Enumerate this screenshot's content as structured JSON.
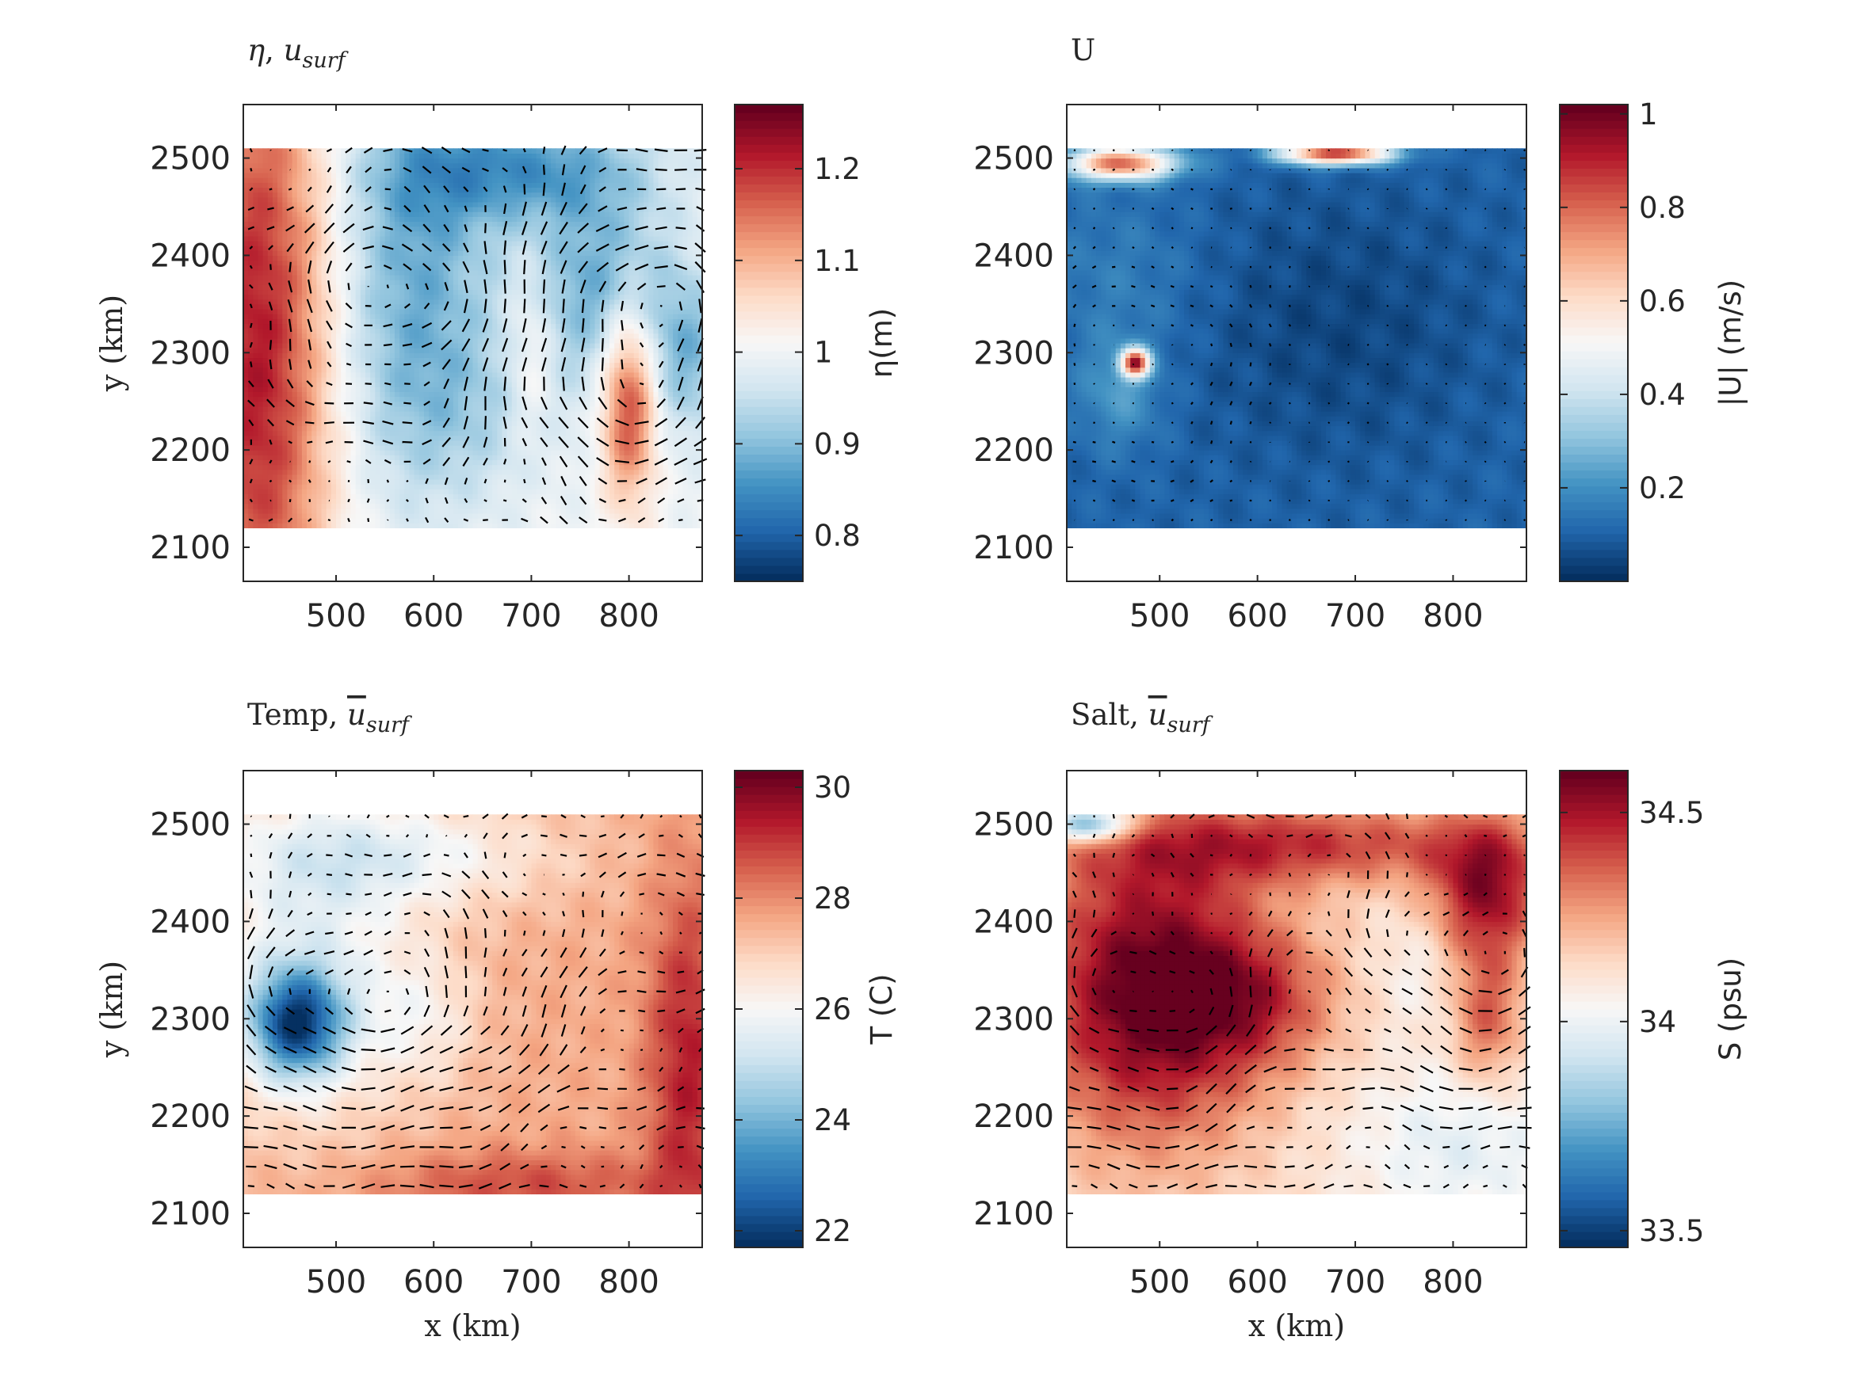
{
  "colors": {
    "colormap": [
      "#053061",
      "#2166ac",
      "#4393c3",
      "#92c5de",
      "#d1e5f0",
      "#f7f7f7",
      "#fddbc7",
      "#f4a582",
      "#d6604d",
      "#b2182b",
      "#67001f"
    ],
    "arrow": "#000000",
    "axis": "#262626"
  },
  "chart_data": [
    {
      "type": "heatmap",
      "panel": "eta",
      "title_parts": [
        "η",
        ", ",
        "u",
        "surf"
      ],
      "xlabel": "",
      "ylabel": "y (km)",
      "colorbar_label": "η(m)",
      "xlim": [
        405,
        875
      ],
      "ylim": [
        2065,
        2555
      ],
      "data_x_range": [
        405,
        875
      ],
      "data_y_range": [
        2120,
        2510
      ],
      "xticks": [
        500,
        600,
        700,
        800
      ],
      "yticks": [
        2100,
        2200,
        2300,
        2400,
        2500
      ],
      "clim": [
        0.75,
        1.27
      ],
      "cticks": [
        {
          "v": 0.8,
          "label": "0.8"
        },
        {
          "v": 0.9,
          "label": "0.9"
        },
        {
          "v": 1.0,
          "label": "1"
        },
        {
          "v": 1.1,
          "label": "1.1"
        },
        {
          "v": 1.2,
          "label": "1.2"
        }
      ],
      "field_base": 1.0,
      "field_features": [
        {
          "x": 420,
          "y": 2300,
          "sx": 55,
          "sy": 260,
          "amp": 0.22
        },
        {
          "x": 800,
          "y": 2250,
          "sx": 20,
          "sy": 70,
          "amp": 0.2
        },
        {
          "x": 700,
          "y": 2300,
          "sx": 18,
          "sy": 60,
          "amp": 0.06
        },
        {
          "x": 580,
          "y": 2380,
          "sx": 60,
          "sy": 150,
          "amp": -0.12
        },
        {
          "x": 690,
          "y": 2490,
          "sx": 90,
          "sy": 40,
          "amp": -0.13
        },
        {
          "x": 770,
          "y": 2370,
          "sx": 50,
          "sy": 70,
          "amp": -0.12
        },
        {
          "x": 860,
          "y": 2300,
          "sx": 30,
          "sy": 60,
          "amp": -0.1
        },
        {
          "x": 650,
          "y": 2240,
          "sx": 70,
          "sy": 60,
          "amp": -0.04
        }
      ],
      "vector_field": {
        "type": "eddies",
        "scale": 1.0,
        "eddies": [
          {
            "x": 800,
            "y": 2260,
            "s": 1
          },
          {
            "x": 560,
            "y": 2360,
            "s": -1
          },
          {
            "x": 830,
            "y": 2380,
            "s": 1
          }
        ]
      }
    },
    {
      "type": "heatmap",
      "panel": "speed",
      "title_parts": [
        "U"
      ],
      "xlabel": "",
      "ylabel": "",
      "colorbar_label": "|U| (m/s)",
      "xlim": [
        405,
        875
      ],
      "ylim": [
        2065,
        2555
      ],
      "data_x_range": [
        405,
        875
      ],
      "data_y_range": [
        2120,
        2510
      ],
      "xticks": [
        500,
        600,
        700,
        800
      ],
      "yticks": [
        2100,
        2200,
        2300,
        2400,
        2500
      ],
      "clim": [
        0.0,
        1.02
      ],
      "cticks": [
        {
          "v": 0.2,
          "label": "0.2"
        },
        {
          "v": 0.4,
          "label": "0.4"
        },
        {
          "v": 0.6,
          "label": "0.6"
        },
        {
          "v": 0.8,
          "label": "0.8"
        },
        {
          "v": 1.0,
          "label": "1"
        }
      ],
      "field_base": 0.1,
      "field_features": [
        {
          "x": 460,
          "y": 2495,
          "sx": 40,
          "sy": 12,
          "amp": 0.7
        },
        {
          "x": 680,
          "y": 2505,
          "sx": 40,
          "sy": 8,
          "amp": 0.8
        },
        {
          "x": 475,
          "y": 2290,
          "sx": 10,
          "sy": 10,
          "amp": 0.8
        },
        {
          "x": 460,
          "y": 2260,
          "sx": 30,
          "sy": 40,
          "amp": 0.12
        },
        {
          "x": 460,
          "y": 2380,
          "sx": 60,
          "sy": 60,
          "amp": 0.06
        },
        {
          "x": 680,
          "y": 2330,
          "sx": 110,
          "sy": 100,
          "amp": -0.06
        }
      ],
      "vector_field": {
        "type": "eddies",
        "scale": 0.3,
        "eddies": [
          {
            "x": 475,
            "y": 2290,
            "s": 1
          }
        ]
      }
    },
    {
      "type": "heatmap",
      "panel": "temp",
      "title_parts": [
        "Temp, ",
        "u",
        "surf"
      ],
      "title_overbar": true,
      "xlabel": "x (km)",
      "ylabel": "y (km)",
      "colorbar_label": "T (C)",
      "xlim": [
        405,
        875
      ],
      "ylim": [
        2065,
        2555
      ],
      "data_x_range": [
        405,
        875
      ],
      "data_y_range": [
        2120,
        2510
      ],
      "xticks": [
        500,
        600,
        700,
        800
      ],
      "yticks": [
        2100,
        2200,
        2300,
        2400,
        2500
      ],
      "clim": [
        21.7,
        30.3
      ],
      "cticks": [
        {
          "v": 22,
          "label": "22"
        },
        {
          "v": 24,
          "label": "24"
        },
        {
          "v": 26,
          "label": "26"
        },
        {
          "v": 28,
          "label": "28"
        },
        {
          "v": 30,
          "label": "30"
        }
      ],
      "field_base": 27.6,
      "field_features": [
        {
          "x": 460,
          "y": 2295,
          "sx": 35,
          "sy": 40,
          "amp": -4.5
        },
        {
          "x": 470,
          "y": 2360,
          "sx": 80,
          "sy": 120,
          "amp": -1.8
        },
        {
          "x": 560,
          "y": 2470,
          "sx": 120,
          "sy": 40,
          "amp": -1.6
        },
        {
          "x": 590,
          "y": 2300,
          "sx": 40,
          "sy": 50,
          "amp": -1.0
        },
        {
          "x": 860,
          "y": 2250,
          "sx": 30,
          "sy": 140,
          "amp": 1.8
        },
        {
          "x": 690,
          "y": 2130,
          "sx": 110,
          "sy": 25,
          "amp": 1.2
        }
      ],
      "vector_field": {
        "type": "eddies",
        "scale": 1.0,
        "base": [
          0.5,
          0.0
        ],
        "eddies": [
          {
            "x": 470,
            "y": 2300,
            "s": 1
          },
          {
            "x": 600,
            "y": 2320,
            "s": 1
          }
        ]
      }
    },
    {
      "type": "heatmap",
      "panel": "salt",
      "title_parts": [
        "Salt, ",
        "u",
        "surf"
      ],
      "title_overbar": true,
      "xlabel": "x (km)",
      "ylabel": "",
      "colorbar_label": "S (psu)",
      "xlim": [
        405,
        875
      ],
      "ylim": [
        2065,
        2555
      ],
      "data_x_range": [
        405,
        875
      ],
      "data_y_range": [
        2120,
        2510
      ],
      "xticks": [
        500,
        600,
        700,
        800
      ],
      "yticks": [
        2100,
        2200,
        2300,
        2400,
        2500
      ],
      "clim": [
        33.46,
        34.6
      ],
      "cticks": [
        {
          "v": 33.5,
          "label": "33.5"
        },
        {
          "v": 34.0,
          "label": "34"
        },
        {
          "v": 34.5,
          "label": "34.5"
        }
      ],
      "field_base": 34.12,
      "field_features": [
        {
          "x": 490,
          "y": 2330,
          "sx": 85,
          "sy": 110,
          "amp": 0.5
        },
        {
          "x": 600,
          "y": 2320,
          "sx": 60,
          "sy": 50,
          "amp": 0.22
        },
        {
          "x": 650,
          "y": 2480,
          "sx": 150,
          "sy": 30,
          "amp": 0.3
        },
        {
          "x": 835,
          "y": 2430,
          "sx": 40,
          "sy": 50,
          "amp": 0.4
        },
        {
          "x": 835,
          "y": 2300,
          "sx": 25,
          "sy": 50,
          "amp": 0.25
        },
        {
          "x": 810,
          "y": 2170,
          "sx": 80,
          "sy": 60,
          "amp": -0.15
        },
        {
          "x": 430,
          "y": 2500,
          "sx": 30,
          "sy": 12,
          "amp": -0.5
        },
        {
          "x": 760,
          "y": 2350,
          "sx": 30,
          "sy": 40,
          "amp": -0.08
        }
      ],
      "vector_field": {
        "type": "eddies",
        "scale": 1.0,
        "base": [
          0.5,
          0.0
        ],
        "eddies": [
          {
            "x": 490,
            "y": 2300,
            "s": 1
          },
          {
            "x": 830,
            "y": 2350,
            "s": 1
          }
        ]
      }
    }
  ]
}
